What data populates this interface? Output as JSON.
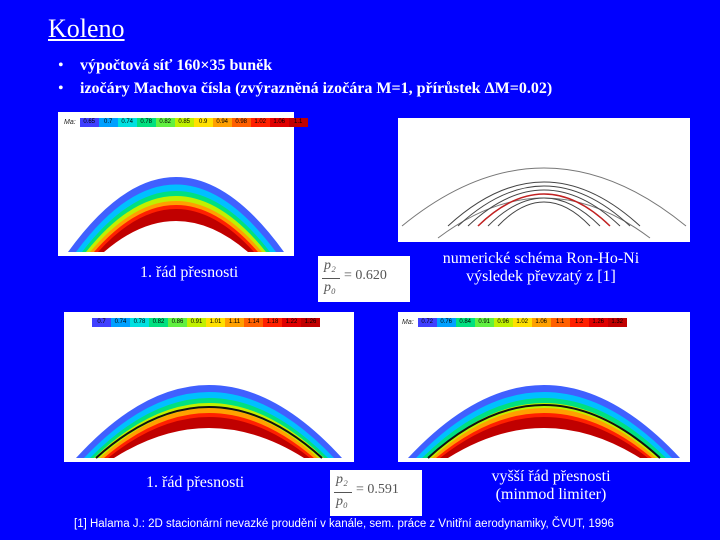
{
  "title": "Koleno",
  "bullets": [
    "výpočtová síť 160×35 buněk",
    "izočáry Machova čísla (zvýrazněná izočára M=1, přírůstek ΔM=0.02)"
  ],
  "panels": {
    "top_left": {
      "legend_label": "Ma:",
      "legend_values": [
        "0.65",
        "0.7",
        "0.74",
        "0.78",
        "0.82",
        "0.85",
        "0.9",
        "0.94",
        "0.98",
        "1.02",
        "1.06",
        "1.1"
      ]
    },
    "bottom_left": {
      "legend_values": [
        "0.7",
        "0.74",
        "0.78",
        "0.82",
        "0.86",
        "0.91",
        "1.01",
        "1.11",
        "1.14",
        "1.18",
        "1.22",
        "1.26"
      ]
    },
    "bottom_right": {
      "legend_label": "Ma:",
      "legend_values": [
        "0.72",
        "0.76",
        "0.84",
        "0.91",
        "0.96",
        "1.02",
        "1.06",
        "1.1",
        "1.2",
        "1.26",
        "1.32"
      ]
    }
  },
  "captions": {
    "top_left": "1. řád přesnosti",
    "top_right_line1": "numerické schéma Ron-Ho-Ni",
    "top_right_line2": "výsledek převzatý z [1]",
    "bottom_left": "1. řád přesnosti",
    "bottom_right_line1": "vyšší řád přesnosti",
    "bottom_right_line2": "(minmod limiter)"
  },
  "formulas": {
    "top": {
      "numerator": "p₂",
      "denominator": "p₀",
      "value": "= 0.620"
    },
    "bottom": {
      "numerator": "p₂",
      "denominator": "p₀",
      "value": "= 0.591"
    }
  },
  "reference": "[1] Halama J.: 2D stacionární nevazké proudění v kanále, sem. práce z Vnitřní aerodynamiky, ČVUT, 1996",
  "colors": {
    "background": "#0000ff",
    "text": "#ffffff"
  }
}
